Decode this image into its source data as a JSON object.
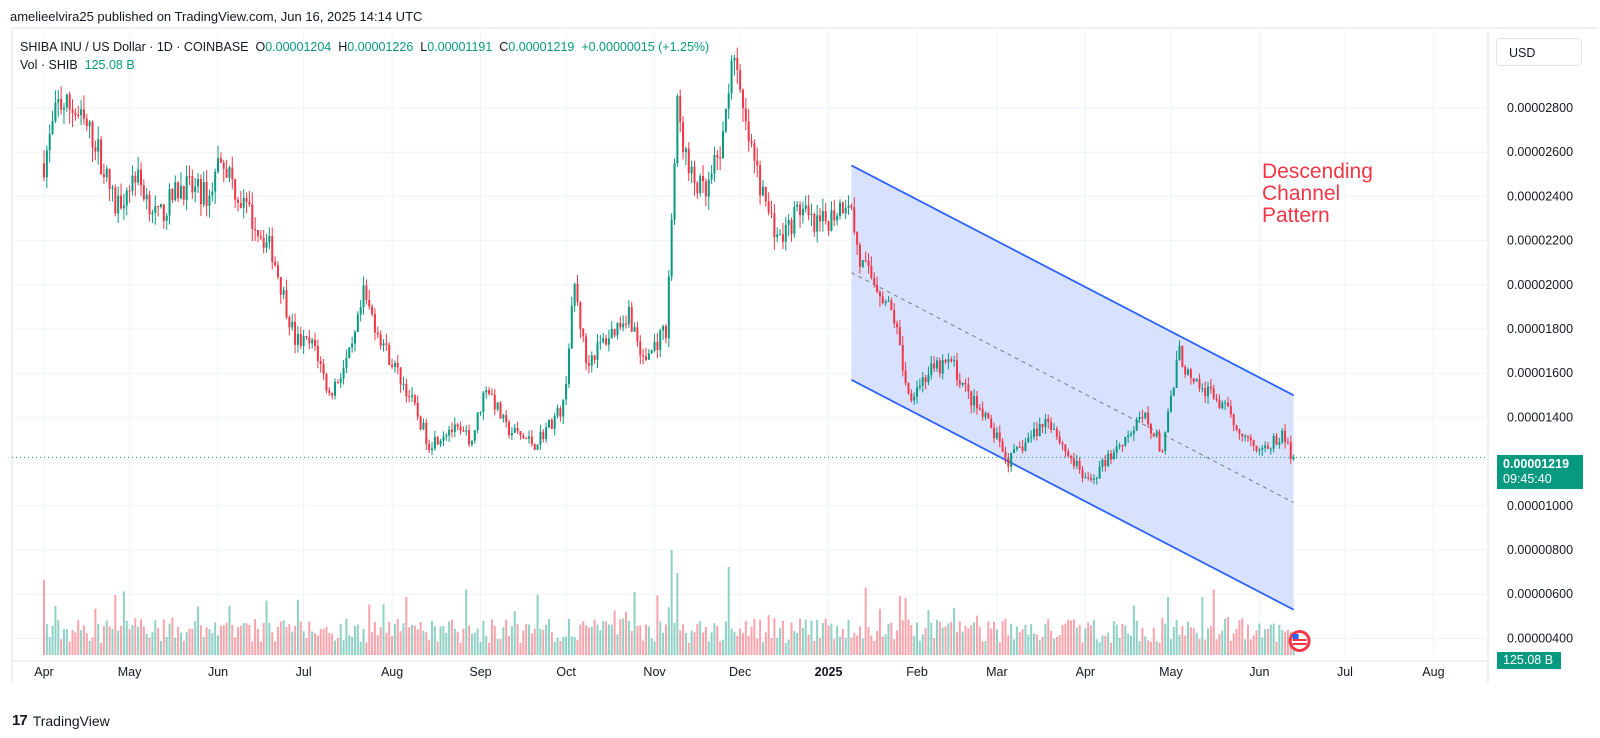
{
  "header": {
    "published": "amelieelvira25 published on TradingView.com, Jun 16, 2025 14:14 UTC"
  },
  "legend": {
    "symbol": "SHIBA INU / US Dollar · 1D · COINBASE",
    "o_label": "O",
    "o": "0.00001204",
    "h_label": "H",
    "h": "0.00001226",
    "l_label": "L",
    "l": "0.00001191",
    "c_label": "C",
    "c": "0.00001219",
    "change": "+0.00000015 (+1.25%)",
    "vol_label": "Vol · SHIB",
    "vol": "125.08 B"
  },
  "currency_button": "USD",
  "annotation": [
    "Descending",
    "Channel",
    "Pattern"
  ],
  "last_price": {
    "price": "0.00001219",
    "countdown": "09:45:40"
  },
  "last_volume": "125.08 B",
  "footer": {
    "brand": "TradingView",
    "brand_mark": "17"
  },
  "colors": {
    "up": "#089981",
    "down": "#f23645",
    "channel": "#2962ff",
    "channel_fill": "#d6e0ff",
    "annotation": "#f23645"
  },
  "chart_data": {
    "type": "candlestick",
    "yaxis": {
      "ticks": [
        "0.00002800",
        "0.00002600",
        "0.00002400",
        "0.00002200",
        "0.00002000",
        "0.00001800",
        "0.00001600",
        "0.00001400",
        "0.00001000",
        "0.00000800",
        "0.00000600",
        "0.00000400"
      ],
      "values": [
        2.8e-05,
        2.6e-05,
        2.4e-05,
        2.2e-05,
        2e-05,
        1.8e-05,
        1.6e-05,
        1.4e-05,
        1e-05,
        8e-06,
        6e-06,
        4e-06
      ]
    },
    "xaxis": {
      "labels": [
        "Apr",
        "May",
        "Jun",
        "Jul",
        "Aug",
        "Sep",
        "Oct",
        "Nov",
        "Dec",
        "2025",
        "Feb",
        "Mar",
        "Apr",
        "May",
        "Jun",
        "Jul",
        "Aug"
      ],
      "days": [
        0,
        30,
        61,
        91,
        122,
        153,
        183,
        214,
        244,
        275,
        306,
        334,
        365,
        395,
        426,
        456,
        487
      ]
    },
    "series_anchors": [
      {
        "d": 0,
        "p": 2.55e-05
      },
      {
        "d": 5,
        "p": 2.82e-05
      },
      {
        "d": 10,
        "p": 2.8e-05
      },
      {
        "d": 18,
        "p": 2.65e-05
      },
      {
        "d": 25,
        "p": 2.35e-05
      },
      {
        "d": 32,
        "p": 2.5e-05
      },
      {
        "d": 40,
        "p": 2.3e-05
      },
      {
        "d": 48,
        "p": 2.45e-05
      },
      {
        "d": 58,
        "p": 2.4e-05
      },
      {
        "d": 62,
        "p": 2.6e-05
      },
      {
        "d": 68,
        "p": 2.4e-05
      },
      {
        "d": 80,
        "p": 2.15e-05
      },
      {
        "d": 88,
        "p": 1.75e-05
      },
      {
        "d": 95,
        "p": 1.72e-05
      },
      {
        "d": 100,
        "p": 1.5e-05
      },
      {
        "d": 108,
        "p": 1.7e-05
      },
      {
        "d": 112,
        "p": 1.95e-05
      },
      {
        "d": 120,
        "p": 1.7e-05
      },
      {
        "d": 128,
        "p": 1.5e-05
      },
      {
        "d": 135,
        "p": 1.28e-05
      },
      {
        "d": 142,
        "p": 1.35e-05
      },
      {
        "d": 150,
        "p": 1.3e-05
      },
      {
        "d": 155,
        "p": 1.55e-05
      },
      {
        "d": 162,
        "p": 1.35e-05
      },
      {
        "d": 172,
        "p": 1.28e-05
      },
      {
        "d": 182,
        "p": 1.45e-05
      },
      {
        "d": 186,
        "p": 2e-05
      },
      {
        "d": 190,
        "p": 1.65e-05
      },
      {
        "d": 200,
        "p": 1.8e-05
      },
      {
        "d": 205,
        "p": 1.88e-05
      },
      {
        "d": 210,
        "p": 1.65e-05
      },
      {
        "d": 218,
        "p": 1.8e-05
      },
      {
        "d": 222,
        "p": 2.8e-05
      },
      {
        "d": 226,
        "p": 2.5e-05
      },
      {
        "d": 232,
        "p": 2.4e-05
      },
      {
        "d": 238,
        "p": 2.65e-05
      },
      {
        "d": 241,
        "p": 3.05e-05
      },
      {
        "d": 246,
        "p": 2.7e-05
      },
      {
        "d": 252,
        "p": 2.4e-05
      },
      {
        "d": 258,
        "p": 2.2e-05
      },
      {
        "d": 265,
        "p": 2.35e-05
      },
      {
        "d": 270,
        "p": 2.25e-05
      },
      {
        "d": 275,
        "p": 2.3e-05
      },
      {
        "d": 282,
        "p": 2.4e-05
      },
      {
        "d": 286,
        "p": 2.1e-05
      },
      {
        "d": 292,
        "p": 2e-05
      },
      {
        "d": 298,
        "p": 1.85e-05
      },
      {
        "d": 303,
        "p": 1.5e-05
      },
      {
        "d": 310,
        "p": 1.6e-05
      },
      {
        "d": 318,
        "p": 1.65e-05
      },
      {
        "d": 324,
        "p": 1.5e-05
      },
      {
        "d": 332,
        "p": 1.35e-05
      },
      {
        "d": 338,
        "p": 1.2e-05
      },
      {
        "d": 345,
        "p": 1.3e-05
      },
      {
        "d": 352,
        "p": 1.4e-05
      },
      {
        "d": 358,
        "p": 1.25e-05
      },
      {
        "d": 366,
        "p": 1.1e-05
      },
      {
        "d": 372,
        "p": 1.2e-05
      },
      {
        "d": 378,
        "p": 1.3e-05
      },
      {
        "d": 386,
        "p": 1.4e-05
      },
      {
        "d": 392,
        "p": 1.25e-05
      },
      {
        "d": 398,
        "p": 1.7e-05
      },
      {
        "d": 402,
        "p": 1.55e-05
      },
      {
        "d": 410,
        "p": 1.5e-05
      },
      {
        "d": 416,
        "p": 1.4e-05
      },
      {
        "d": 422,
        "p": 1.3e-05
      },
      {
        "d": 428,
        "p": 1.25e-05
      },
      {
        "d": 434,
        "p": 1.32e-05
      },
      {
        "d": 438,
        "p": 1.21e-05
      }
    ],
    "channel": {
      "upper": [
        {
          "d": 283,
          "p": 2.54e-05
        },
        {
          "d": 438,
          "p": 1.5e-05
        }
      ],
      "lower": [
        {
          "d": 283,
          "p": 1.57e-05
        },
        {
          "d": 438,
          "p": 5.3e-06
        }
      ],
      "end_day": 438
    },
    "last_price": 1.219e-05,
    "last_volume_b": 125.08,
    "volume_spikes": [
      {
        "d": 0,
        "v": 0.75
      },
      {
        "d": 25,
        "v": 0.6
      },
      {
        "d": 127,
        "v": 0.58
      },
      {
        "d": 220,
        "v": 1.05
      },
      {
        "d": 222,
        "v": 0.82
      },
      {
        "d": 240,
        "v": 0.88
      },
      {
        "d": 310,
        "v": 0.45
      }
    ]
  }
}
